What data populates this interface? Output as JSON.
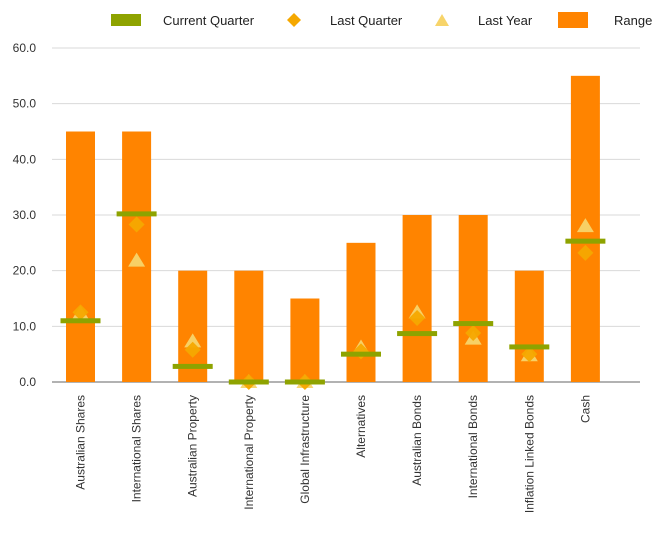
{
  "colors": {
    "range": "#ff8400",
    "current": "#8ea300",
    "last_quarter": "#f5a800",
    "last_year": "#f7d46a",
    "grid": "#d9d9d9",
    "axis": "#666666"
  },
  "legend": [
    {
      "key": "current",
      "label": "Current Quarter",
      "marker": "bar"
    },
    {
      "key": "last_quarter",
      "label": "Last Quarter",
      "marker": "diamond"
    },
    {
      "key": "last_year",
      "label": "Last Year",
      "marker": "triangle"
    },
    {
      "key": "range",
      "label": "Range",
      "marker": "box"
    }
  ],
  "chart_data": {
    "type": "bar",
    "title": "",
    "xlabel": "",
    "ylabel": "",
    "ylim": [
      0,
      60
    ],
    "yticks": [
      0,
      10,
      20,
      30,
      40,
      50,
      60
    ],
    "ytick_labels": [
      "0.0",
      "10.0",
      "20.0",
      "30.0",
      "40.0",
      "50.0",
      "60.0"
    ],
    "grid": true,
    "legend_position": "top",
    "categories": [
      "Australian Shares",
      "International Shares",
      "Australian Property",
      "International Property",
      "Global Infrastructure",
      "Alternatives",
      "Australian Bonds",
      "International Bonds",
      "Inflation Linked Bonds",
      "Cash"
    ],
    "series": [
      {
        "name": "Range",
        "type": "bar",
        "values": [
          45,
          45,
          20,
          20,
          15,
          25,
          30,
          30,
          20,
          55
        ]
      },
      {
        "name": "Current Quarter",
        "type": "marker-bar",
        "values": [
          11,
          30.2,
          2.8,
          0,
          0,
          5,
          8.7,
          10.5,
          6.3,
          25.3
        ]
      },
      {
        "name": "Last Quarter",
        "type": "marker-diamond",
        "values": [
          12.5,
          28.3,
          5.8,
          0,
          0,
          5.5,
          11.5,
          8.8,
          5,
          23.2
        ]
      },
      {
        "name": "Last Year",
        "type": "marker-triangle",
        "values": [
          12.3,
          21.8,
          7.3,
          0,
          0,
          6.2,
          12.5,
          7.8,
          4.8,
          28
        ]
      }
    ]
  }
}
